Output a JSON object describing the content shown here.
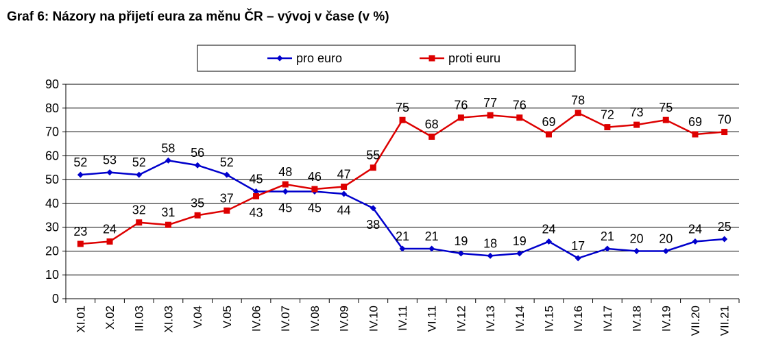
{
  "chart_data": {
    "type": "line",
    "title": "Graf 6: Názory na přijetí eura za měnu ČR – vývoj v čase (v %)",
    "xlabel": "",
    "ylabel": "",
    "ylim": [
      0,
      90
    ],
    "yticks": [
      0,
      10,
      20,
      30,
      40,
      50,
      60,
      70,
      80,
      90
    ],
    "grid": true,
    "legend": "top-center",
    "categories": [
      "XI.01",
      "X.02",
      "III.03",
      "XI.03",
      "V.04",
      "V.05",
      "IV.06",
      "IV.07",
      "IV.08",
      "IV.09",
      "IV.10",
      "IV.11",
      "VI.11",
      "IV.12",
      "IV.13",
      "IV.14",
      "IV.15",
      "IV.16",
      "IV.17",
      "IV.18",
      "IV.19",
      "VII.20",
      "VII.21"
    ],
    "series": [
      {
        "name": "pro euro",
        "color": "#0000cc",
        "marker": "diamond",
        "label_position": [
          "above",
          "above",
          "above",
          "above",
          "above",
          "above",
          "above",
          "below",
          "below",
          "below",
          "below",
          "above",
          "above",
          "above",
          "above",
          "above",
          "above",
          "above",
          "above",
          "above",
          "above",
          "above",
          "above"
        ],
        "values": [
          52,
          53,
          52,
          58,
          56,
          52,
          45,
          45,
          45,
          44,
          38,
          21,
          21,
          19,
          18,
          19,
          24,
          17,
          21,
          20,
          20,
          24,
          25
        ]
      },
      {
        "name": "proti euru",
        "color": "#dd0000",
        "marker": "square",
        "label_position": [
          "above",
          "above",
          "above",
          "above",
          "above",
          "above",
          "below",
          "above",
          "above",
          "above",
          "above",
          "above",
          "above",
          "above",
          "above",
          "above",
          "above",
          "above",
          "above",
          "above",
          "above",
          "above",
          "above"
        ],
        "values": [
          23,
          24,
          32,
          31,
          35,
          37,
          43,
          48,
          46,
          47,
          55,
          75,
          68,
          76,
          77,
          76,
          69,
          78,
          72,
          73,
          75,
          69,
          70
        ]
      }
    ]
  }
}
